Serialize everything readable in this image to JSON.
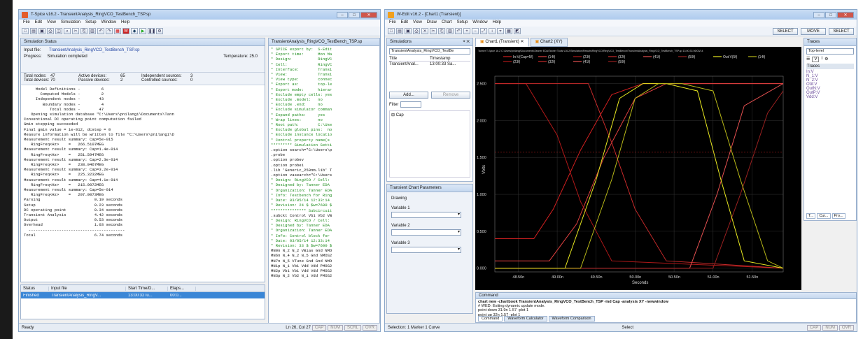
{
  "tspice": {
    "title": "T-Spice v16.2 - TransientAnalysis_RingVCO_TestBench_TSP.sp",
    "menu": [
      "File",
      "Edit",
      "View",
      "Simulation",
      "Setup",
      "Window",
      "Help"
    ],
    "status_title": "Simulation Status",
    "input_label": "Input file:",
    "input_value": "TransientAnalysis_RingVCO_TestBench_TSP.sp",
    "progress_label": "Progress:",
    "progress_value": "Simulation completed",
    "temp_label": "Temperature: 25.0",
    "stats": [
      [
        "Total nodes:",
        "47",
        "Active devices:",
        "65",
        "Independent sources:",
        "3"
      ],
      [
        "Total devices:",
        "70",
        "Passive devices:",
        "2",
        "Controlled sources:",
        "0"
      ]
    ],
    "log": [
      "     Model Definitions -         6",
      "       Computed Models -         2",
      "     Independent nodes -        43",
      "        Boundary nodes -         4",
      "           Total nodes -        47",
      "",
      "   Opening simulation database \"C:\\Users\\pnilangi\\Documents\\Tann",
      "Conventional DC operating point computation failed",
      "Gmin stepping succeeded",
      "Final gmin value = 1e-012, dcstep = 0",
      "",
      "Measure information will be written to file \"C:\\Users\\pnilangi\\D",
      "",
      "Measurement result summary: Cap=5e-015",
      "   RingFreq<Hz>    =   266.5107MEG",
      "",
      "Measurement result summary: Cap=1.4e-014",
      "   RingFreq<Hz>    =   251.5947MEG",
      "",
      "Measurement result summary: Cap=2.3e-014",
      "   RingFreq<Hz>    =   238.0467MEG",
      "",
      "Measurement result summary: Cap=3.2e-014",
      "   RingFreq<Hz>    =   225.3232MEG",
      "",
      "Measurement result summary: Cap=4.1e-014",
      "   RingFreq<Hz>    =   215.0072MEG",
      "",
      "Measurement result summary: Cap=5e-014",
      "   RingFreq<Hz>    =   207.0073MEG",
      "",
      "Parsing                       0.19 seconds",
      "Setup                         0.23 seconds",
      "DC operating point            0.34 seconds",
      "Transient Analysis            4.42 seconds",
      "Output                        0.53 seconds",
      "Overhead                      1.03 seconds",
      "  -----------------------------------------",
      "Total                         6.74 seconds"
    ],
    "file_tab": "TransientAnalysis_RingVCO_TestBench_TSP.sp",
    "code": [
      "* SPICE export by:  S-Edit",
      "* Export time:      Mon Ma",
      "* Design:           RingVC",
      "* Cell:             RingVC",
      "* Interface:        Transi",
      "* View:             Transi",
      "* View type:        connec",
      "* Export as:        top-le",
      "* Export mode:      hierar",
      "* Exclude empty cells: yes",
      "* Exclude .model:   no",
      "* Exclude .end:     no",
      "* Exclude simulator comman",
      "* Expand paths:     yes",
      "* Wrap lines:       no",
      "* Root path:        C:\\Use",
      "* Exclude global pins:  no",
      "* Exclude instance locatio",
      "* Control property name(s",
      "",
      "********* Simulation Setti",
      ".option search=\"C:\\Users\\p",
      ".probe",
      ".option probev",
      ".option probei",
      ".lib 'Generic_250nm.lib' T",
      ".option vasearch=\"C:\\Users",
      "",
      "* Design: RingVCO / Cell:",
      "* Designed by: Tanner EDA",
      "* Organization: Tanner EDA",
      "* Info: Testbench for Ring",
      "* Date: 03/05/14 12:33:14",
      "* Revision: 24 $ $w=7600 $",
      "*************** Subcircuit",
      ".subckt Control Vb1 Vb2 VB",
      "* Design: RingVCO / Cell:",
      "* Designed by: Tanner EDA",
      "* Organization: Tanner EDA",
      "* Info: Control block for",
      "* Date: 03/05/14 12:33:14",
      "* Revision: 33 $ $w=7600 $",
      "MN0n N_2 N_2 VBias Gnd NMO",
      "MN6n N_4 N_2 N_5 Gnd NMOS2",
      "MN7n N_5 VTune Gnd Gnd NMO",
      "MN1p N_1 Vb1 Vdd Vdd PMOS2",
      "MN2p Vb1 Vb1 Vdd Vdd PMOS2",
      "MN3p N_2 Vb2 N_1 Vdd PMOS2"
    ],
    "table_headers": [
      "Status",
      "Input file",
      "Start Time/D...",
      "Elaps..."
    ],
    "table_row": [
      "Finished",
      "TransientAnalysis_RingV...",
      "13:00:32 lu...",
      "00:0..."
    ],
    "statusbar": {
      "left": "Ready",
      "pos": "Ln 26, Col 27",
      "ind": [
        "CAP",
        "NUM",
        "SCRL",
        "OVR"
      ]
    }
  },
  "wedit": {
    "title": "W-Edit v16.2 - [Chart1 (Transient)]",
    "menu": [
      "File",
      "Edit",
      "View",
      "Draw",
      "Chart",
      "Setup",
      "Window",
      "Help"
    ],
    "toolbar_right": [
      "SELECT",
      "MOVE",
      "SELECT"
    ],
    "sim_panel": "Simulations",
    "sim_select": "TransientAnalysis_RingVCO_TestBe",
    "sim_cols": [
      "Title",
      "Timestamp"
    ],
    "sim_row": [
      "TransientAnal...",
      "13:00:33 Sa..."
    ],
    "add_btn": "Add...",
    "remove_btn": "Remove",
    "filter_label": "Filter",
    "tree_item": "Cap",
    "params_panel": "Transient Chart Parameters",
    "params": [
      "Drawing",
      "Variable 1",
      "Variable 2",
      "Variable 3"
    ],
    "tabs": [
      "Chart1 (Transient)",
      "Chart2 (XY)"
    ],
    "chart_header": "Tanner T-Spice 16.2 C:\\Users\\pnilangi\\Documents\\Tanner EDA\\Tanner Tools v16.2\\Simulation\\Results\\RingVCO\\RingVCO_TestBench\\TransientAnalysis_RingVCO_TestBench_TSP.sp 13:00:33 06/03/14",
    "legend_row1": [
      "In:V(Cap=5f)",
      "(14f)",
      "(23f)",
      "(32f)",
      "(41f)",
      "(50f)",
      "Out:V(5f)",
      "(14f)"
    ],
    "legend_row2": [
      "(23f)",
      "(32f)",
      "(41f)",
      "(50f)"
    ],
    "traces_panel": "Traces",
    "traces_select": "Top-level",
    "traces_head": "Traces",
    "traces": [
      "In:V",
      "N_1:V",
      "N_2:V",
      "Out:V",
      "OutN:V",
      "OutP:V",
      "Vdd:V"
    ],
    "traces_tabs": [
      "T...",
      "Cur...",
      "Pro..."
    ],
    "command_title": "Command",
    "command_lines": [
      "chart new -chartbook TransientAnalysis_RingVCO_TestBench_TSP -ind Cap -analysis XY -newwindow",
      "# WED: Exiting dynamic update mode.",
      "point down 31.9n 1.57 -plot 1",
      "point up 32n 1.57 -plot 1"
    ],
    "command_tabs": [
      "Command",
      "Waveform Calculator",
      "Waveform Comparison"
    ],
    "statusbar": {
      "left": "Selection: 1 Marker 1 Curve",
      "mid": "Select",
      "ind": [
        "CAP",
        "NUM",
        "OVR"
      ]
    }
  },
  "chart_data": {
    "type": "line",
    "xlabel": "Seconds",
    "ylabel": "Volts",
    "x_ticks": [
      "48.50n",
      "49.00n",
      "49.50n",
      "50.00n",
      "50.50n",
      "51.00n",
      "51.50n"
    ],
    "y_ticks": [
      "0.000",
      "0.500",
      "1.000",
      "1.500",
      "2.000",
      "2.500"
    ],
    "xlim": [
      48.2,
      51.9
    ],
    "ylim": [
      -0.05,
      2.6
    ],
    "series": [
      {
        "name": "In:V(Cap=5f)",
        "color": "#d12020",
        "x": [
          48.2,
          48.7,
          48.95,
          49.3,
          49.7,
          50.1,
          51.9
        ],
        "y": [
          0.4,
          0.4,
          0.8,
          1.6,
          2.35,
          2.5,
          2.5
        ]
      },
      {
        "name": "(14f)",
        "color": "#e04040",
        "x": [
          48.2,
          48.9,
          49.25,
          49.6,
          50.0,
          50.4,
          51.9
        ],
        "y": [
          0.1,
          0.1,
          0.6,
          1.5,
          2.3,
          2.5,
          2.5
        ]
      },
      {
        "name": "(23f)",
        "color": "#b01818",
        "x": [
          48.2,
          48.6,
          49.0,
          49.3,
          49.7,
          51.9
        ],
        "y": [
          2.5,
          2.5,
          1.8,
          0.9,
          0.1,
          0.0
        ]
      },
      {
        "name": "(32f)",
        "color": "#c82a2a",
        "x": [
          48.2,
          49.4,
          49.7,
          50.0,
          50.4,
          51.9
        ],
        "y": [
          2.5,
          2.5,
          1.7,
          0.8,
          0.1,
          0.0
        ]
      },
      {
        "name": "(41f)",
        "color": "#e55050",
        "x": [
          48.2,
          50.7,
          51.05,
          51.4,
          51.9
        ],
        "y": [
          0.0,
          0.0,
          1.0,
          2.2,
          2.5
        ]
      },
      {
        "name": "(50f)",
        "color": "#992020",
        "x": [
          48.2,
          51.0,
          51.35,
          51.7,
          51.9
        ],
        "y": [
          0.0,
          0.0,
          1.0,
          2.1,
          2.4
        ]
      },
      {
        "name": "Out:V(5f)",
        "color": "#e8e820",
        "x": [
          48.2,
          49.1,
          49.5,
          49.8,
          50.1,
          50.4,
          50.8,
          51.1,
          51.4,
          51.9
        ],
        "y": [
          0.0,
          0.0,
          1.2,
          2.3,
          2.5,
          2.5,
          2.4,
          1.2,
          0.1,
          0.0
        ]
      },
      {
        "name": "(14f)",
        "color": "#b8b818",
        "x": [
          48.2,
          49.3,
          49.7,
          50.0,
          50.3,
          50.6,
          51.0,
          51.35,
          51.7,
          51.9
        ],
        "y": [
          0.0,
          0.0,
          1.2,
          2.3,
          2.5,
          2.5,
          2.4,
          1.2,
          0.1,
          0.0
        ]
      }
    ]
  }
}
